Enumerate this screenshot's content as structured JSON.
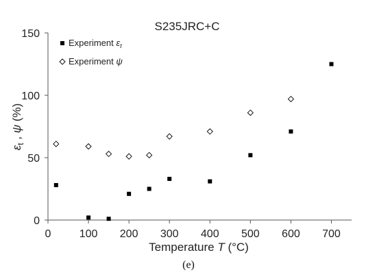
{
  "caption": "(e)",
  "chart_data": {
    "type": "scatter",
    "title": "S235JRC+C",
    "xlabel_prefix": "Temperature ",
    "xlabel_var": "T",
    "xlabel_suffix": " (°C)",
    "ylabel_a": "ε",
    "ylabel_a_sub": "t",
    "ylabel_sep": " , ",
    "ylabel_b": "ψ",
    "ylabel_suffix": " (%)",
    "xlim": [
      0,
      750
    ],
    "ylim": [
      0,
      150
    ],
    "x_ticks": [
      0,
      100,
      200,
      300,
      400,
      500,
      600,
      700
    ],
    "y_ticks": [
      0,
      50,
      100,
      150
    ],
    "grid": false,
    "legend_position": "top-left",
    "series": [
      {
        "name": "Experiment εt",
        "legend_label": "Experiment ",
        "legend_symbol": "ε",
        "legend_sub": "t",
        "marker": "square-filled",
        "color": "#000000",
        "points": [
          [
            20,
            28
          ],
          [
            100,
            2
          ],
          [
            150,
            1
          ],
          [
            200,
            21
          ],
          [
            250,
            25
          ],
          [
            300,
            33
          ],
          [
            400,
            31
          ],
          [
            500,
            52
          ],
          [
            600,
            71
          ],
          [
            700,
            125
          ]
        ]
      },
      {
        "name": "Experiment ψ",
        "legend_label": "Experiment ",
        "legend_symbol": "ψ",
        "legend_sub": "",
        "marker": "diamond-open",
        "color": "#000000",
        "points": [
          [
            20,
            61
          ],
          [
            100,
            59
          ],
          [
            150,
            53
          ],
          [
            200,
            51
          ],
          [
            250,
            52
          ],
          [
            300,
            67
          ],
          [
            400,
            71
          ],
          [
            500,
            86
          ],
          [
            600,
            97
          ]
        ]
      }
    ]
  }
}
